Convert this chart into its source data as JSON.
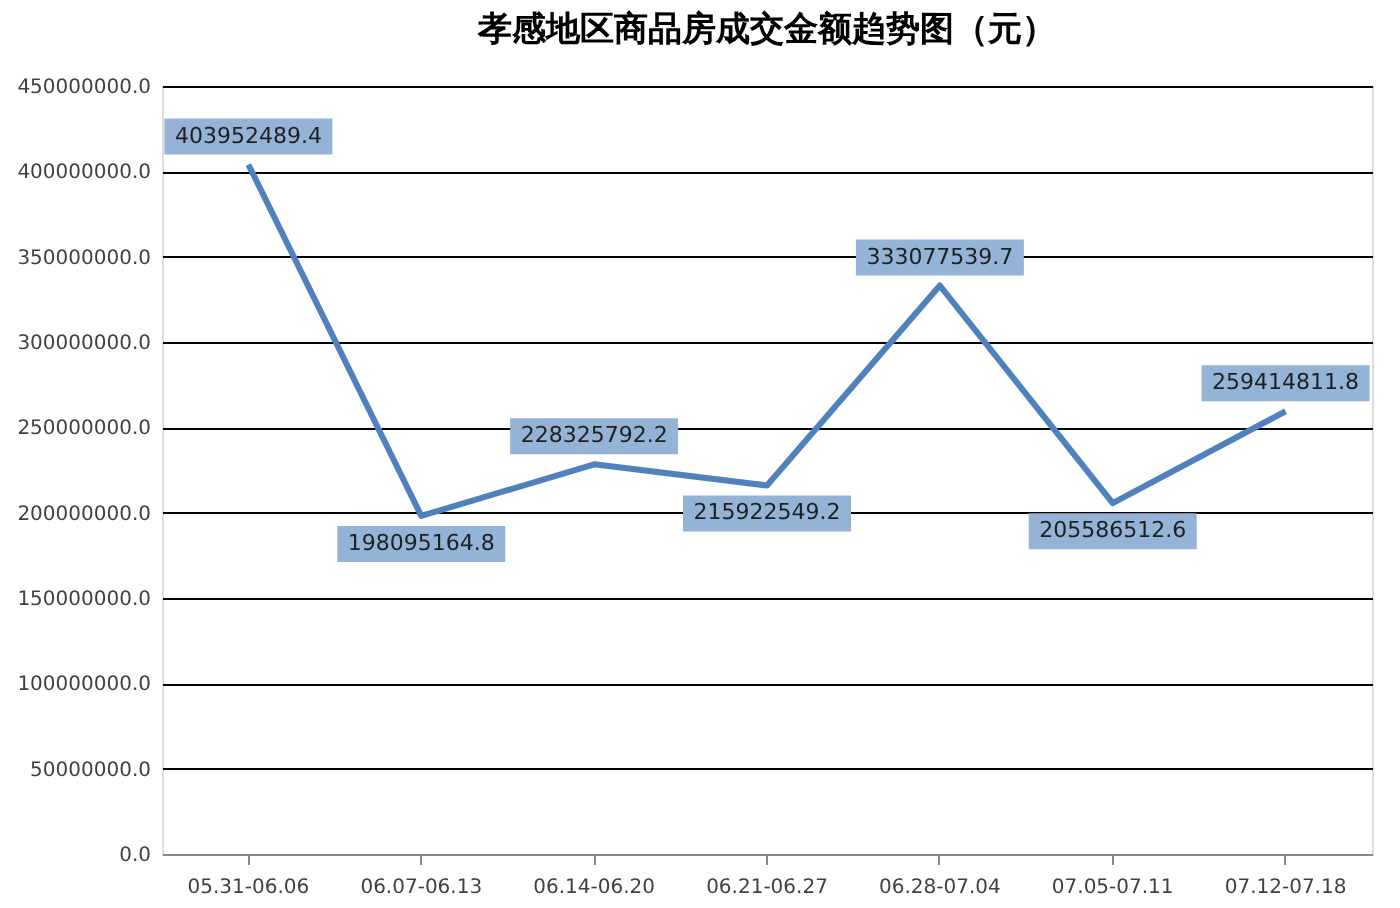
{
  "chart_data": {
    "type": "line",
    "title": "孝感地区商品房成交金额趋势图（元）",
    "categories": [
      "05.31-06.06",
      "06.07-06.13",
      "06.14-06.20",
      "06.21-06.27",
      "06.28-07.04",
      "07.05-07.11",
      "07.12-07.18"
    ],
    "series": [
      {
        "color": "#4f81bd",
        "values": [
          403952489.4,
          198095164.8,
          228325792.2,
          215922549.2,
          333077539.7,
          205586512.6,
          259414811.8
        ]
      }
    ],
    "ylim": [
      0,
      450000000
    ],
    "yticks": [
      {
        "value": 0,
        "label": "0.0"
      },
      {
        "value": 50000000,
        "label": "50000000.0"
      },
      {
        "value": 100000000,
        "label": "100000000.0"
      },
      {
        "value": 150000000,
        "label": "150000000.0"
      },
      {
        "value": 200000000,
        "label": "200000000.0"
      },
      {
        "value": 250000000,
        "label": "250000000.0"
      },
      {
        "value": 300000000,
        "label": "300000000.0"
      },
      {
        "value": 350000000,
        "label": "350000000.0"
      },
      {
        "value": 400000000,
        "label": "400000000.0"
      },
      {
        "value": 450000000,
        "label": "450000000.0"
      }
    ],
    "grid": "y",
    "marker": "none",
    "line_style": "solid",
    "data_labels": true
  }
}
